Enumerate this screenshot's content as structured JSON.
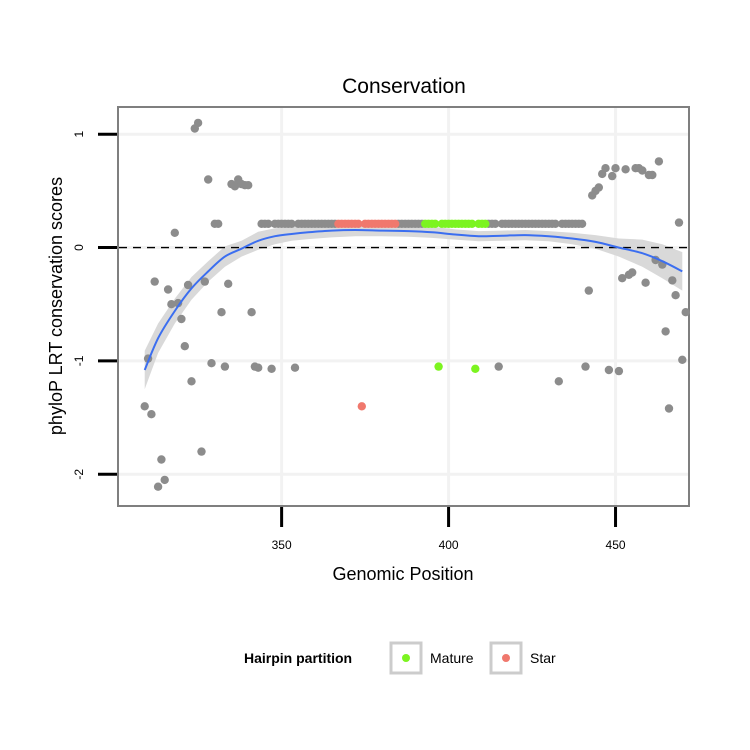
{
  "chart_data": {
    "type": "scatter",
    "title": "Conservation",
    "xlabel": "Genomic Position",
    "ylabel": "phyloP LRT conservation scores",
    "xlim": [
      301,
      472
    ],
    "ylim": [
      -2.28,
      1.24
    ],
    "xticks": [
      350,
      400,
      450
    ],
    "yticks": [
      1,
      0,
      -1,
      -2
    ],
    "reference_line": 0,
    "legend": {
      "title": "Hairpin partition",
      "entries": [
        {
          "label": "Mature",
          "color": "#7cf420"
        },
        {
          "label": "Star",
          "color": "#f0786d"
        }
      ]
    },
    "colors": {
      "other": "#8c8c8c",
      "mature": "#7cf420",
      "star": "#f0786d",
      "smooth": "#3b6ef0",
      "ribbon": "#d9d9d9"
    },
    "series": [
      {
        "name": "Other",
        "points": [
          [
            309,
            -1.4
          ],
          [
            310,
            -0.98
          ],
          [
            311,
            -1.47
          ],
          [
            312,
            -0.3
          ],
          [
            313,
            -2.11
          ],
          [
            314,
            -1.87
          ],
          [
            315,
            -2.05
          ],
          [
            316,
            -0.37
          ],
          [
            317,
            -0.5
          ],
          [
            318,
            0.13
          ],
          [
            319,
            -0.49
          ],
          [
            320,
            -0.63
          ],
          [
            321,
            -0.87
          ],
          [
            322,
            -0.33
          ],
          [
            323,
            -1.18
          ],
          [
            324,
            1.05
          ],
          [
            325,
            1.1
          ],
          [
            326,
            -1.8
          ],
          [
            327,
            -0.3
          ],
          [
            328,
            0.6
          ],
          [
            329,
            -1.02
          ],
          [
            330,
            0.21
          ],
          [
            331,
            0.21
          ],
          [
            332,
            -0.57
          ],
          [
            333,
            -1.05
          ],
          [
            334,
            -0.32
          ],
          [
            335,
            0.56
          ],
          [
            336,
            0.54
          ],
          [
            337,
            0.6
          ],
          [
            338,
            0.56
          ],
          [
            339,
            0.55
          ],
          [
            340,
            0.55
          ],
          [
            341,
            -0.57
          ],
          [
            342,
            -1.05
          ],
          [
            343,
            -1.06
          ],
          [
            344,
            0.21
          ],
          [
            345,
            0.21
          ],
          [
            346,
            0.21
          ],
          [
            347,
            -1.07
          ],
          [
            348,
            0.21
          ],
          [
            349,
            0.21
          ],
          [
            350,
            0.21
          ],
          [
            351,
            0.21
          ],
          [
            352,
            0.21
          ],
          [
            353,
            0.21
          ],
          [
            354,
            -1.06
          ],
          [
            355,
            0.21
          ],
          [
            356,
            0.21
          ],
          [
            357,
            0.21
          ],
          [
            358,
            0.21
          ],
          [
            359,
            0.21
          ],
          [
            360,
            0.21
          ],
          [
            361,
            0.21
          ],
          [
            362,
            0.21
          ],
          [
            363,
            0.21
          ],
          [
            364,
            0.21
          ],
          [
            365,
            0.21
          ],
          [
            366,
            0.21
          ],
          [
            385,
            0.21
          ],
          [
            386,
            0.21
          ],
          [
            387,
            0.21
          ],
          [
            388,
            0.21
          ],
          [
            389,
            0.21
          ],
          [
            390,
            0.21
          ],
          [
            391,
            0.21
          ],
          [
            392,
            0.21
          ],
          [
            412,
            0.21
          ],
          [
            413,
            0.21
          ],
          [
            414,
            0.21
          ],
          [
            415,
            -1.05
          ],
          [
            416,
            0.21
          ],
          [
            417,
            0.21
          ],
          [
            418,
            0.21
          ],
          [
            419,
            0.21
          ],
          [
            420,
            0.21
          ],
          [
            421,
            0.21
          ],
          [
            422,
            0.21
          ],
          [
            423,
            0.21
          ],
          [
            424,
            0.21
          ],
          [
            425,
            0.21
          ],
          [
            426,
            0.21
          ],
          [
            427,
            0.21
          ],
          [
            428,
            0.21
          ],
          [
            429,
            0.21
          ],
          [
            430,
            0.21
          ],
          [
            431,
            0.21
          ],
          [
            432,
            0.21
          ],
          [
            433,
            -1.18
          ],
          [
            434,
            0.21
          ],
          [
            435,
            0.21
          ],
          [
            436,
            0.21
          ],
          [
            437,
            0.21
          ],
          [
            438,
            0.21
          ],
          [
            439,
            0.21
          ],
          [
            440,
            0.21
          ],
          [
            441,
            -1.05
          ],
          [
            442,
            -0.38
          ],
          [
            443,
            0.46
          ],
          [
            444,
            0.5
          ],
          [
            445,
            0.53
          ],
          [
            446,
            0.65
          ],
          [
            447,
            0.7
          ],
          [
            448,
            -1.08
          ],
          [
            449,
            0.63
          ],
          [
            450,
            0.7
          ],
          [
            451,
            -1.09
          ],
          [
            452,
            -0.27
          ],
          [
            453,
            0.69
          ],
          [
            454,
            -0.24
          ],
          [
            455,
            -0.22
          ],
          [
            456,
            0.7
          ],
          [
            457,
            0.7
          ],
          [
            458,
            0.68
          ],
          [
            459,
            -0.31
          ],
          [
            460,
            0.64
          ],
          [
            461,
            0.64
          ],
          [
            462,
            -0.11
          ],
          [
            463,
            0.76
          ],
          [
            464,
            -0.15
          ],
          [
            465,
            -0.74
          ],
          [
            466,
            -1.42
          ],
          [
            467,
            -0.29
          ],
          [
            468,
            -0.42
          ],
          [
            469,
            0.22
          ],
          [
            470,
            -0.99
          ],
          [
            471,
            -0.57
          ]
        ]
      },
      {
        "name": "Star",
        "points": [
          [
            367,
            0.21
          ],
          [
            368,
            0.21
          ],
          [
            369,
            0.21
          ],
          [
            370,
            0.21
          ],
          [
            371,
            0.21
          ],
          [
            372,
            0.21
          ],
          [
            373,
            0.21
          ],
          [
            374,
            -1.4
          ],
          [
            375,
            0.21
          ],
          [
            376,
            0.21
          ],
          [
            377,
            0.21
          ],
          [
            378,
            0.21
          ],
          [
            379,
            0.21
          ],
          [
            380,
            0.21
          ],
          [
            381,
            0.21
          ],
          [
            382,
            0.21
          ],
          [
            383,
            0.21
          ],
          [
            384,
            0.21
          ]
        ]
      },
      {
        "name": "Mature",
        "points": [
          [
            393,
            0.21
          ],
          [
            394,
            0.21
          ],
          [
            395,
            0.21
          ],
          [
            396,
            0.21
          ],
          [
            397,
            -1.05
          ],
          [
            398,
            0.21
          ],
          [
            399,
            0.21
          ],
          [
            400,
            0.21
          ],
          [
            401,
            0.21
          ],
          [
            402,
            0.21
          ],
          [
            403,
            0.21
          ],
          [
            404,
            0.21
          ],
          [
            405,
            0.21
          ],
          [
            406,
            0.21
          ],
          [
            407,
            0.21
          ],
          [
            408,
            -1.07
          ],
          [
            409,
            0.21
          ],
          [
            410,
            0.21
          ],
          [
            411,
            0.21
          ]
        ]
      }
    ],
    "smooth": {
      "x": [
        309,
        313,
        318,
        323,
        328,
        333,
        338,
        343,
        348,
        353,
        358,
        365,
        372,
        380,
        388,
        395,
        402,
        409,
        416,
        423,
        430,
        437,
        444,
        451,
        458,
        464,
        470
      ],
      "y": [
        -1.08,
        -0.8,
        -0.56,
        -0.36,
        -0.21,
        -0.08,
        -0.01,
        0.06,
        0.1,
        0.12,
        0.135,
        0.15,
        0.155,
        0.15,
        0.145,
        0.135,
        0.115,
        0.1,
        0.105,
        0.11,
        0.1,
        0.08,
        0.05,
        0.0,
        -0.05,
        -0.12,
        -0.21
      ],
      "ymin": [
        -1.25,
        -0.93,
        -0.67,
        -0.46,
        -0.3,
        -0.17,
        -0.08,
        -0.02,
        0.03,
        0.06,
        0.075,
        0.09,
        0.1,
        0.1,
        0.095,
        0.085,
        0.07,
        0.055,
        0.06,
        0.065,
        0.055,
        0.03,
        -0.01,
        -0.08,
        -0.17,
        -0.27,
        -0.38
      ],
      "ymax": [
        -0.91,
        -0.67,
        -0.45,
        -0.26,
        -0.12,
        0.01,
        0.06,
        0.14,
        0.17,
        0.18,
        0.195,
        0.21,
        0.21,
        0.2,
        0.195,
        0.185,
        0.16,
        0.145,
        0.15,
        0.155,
        0.145,
        0.13,
        0.11,
        0.08,
        0.07,
        0.03,
        -0.04
      ]
    }
  }
}
